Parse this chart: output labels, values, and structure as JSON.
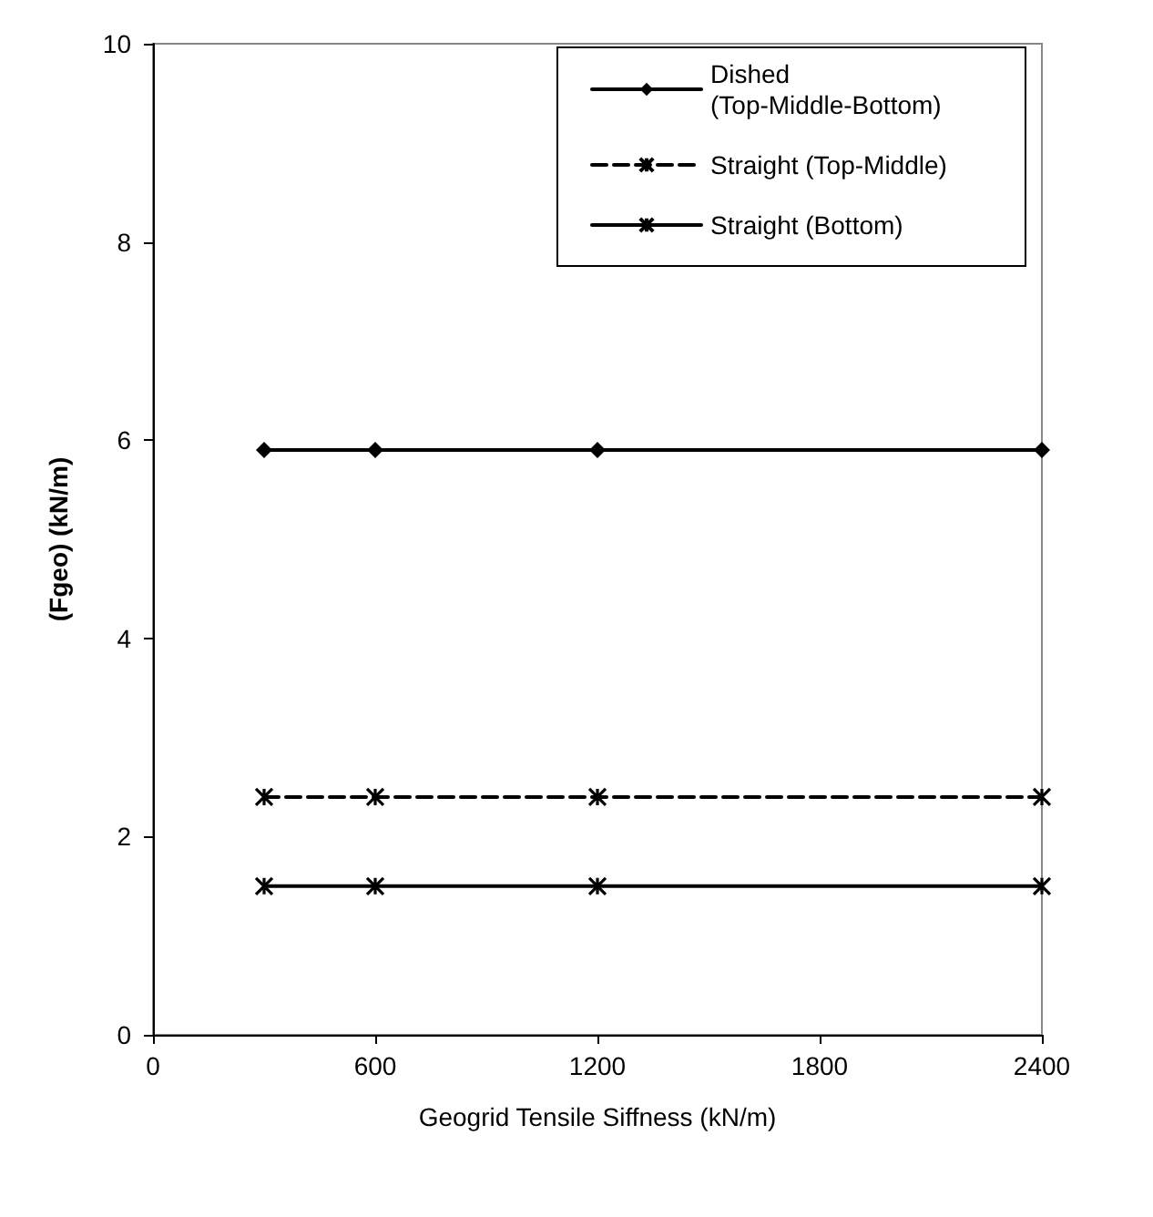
{
  "chart_data": {
    "type": "line",
    "xlabel": "Geogrid Tensile Siffness (kN/m)",
    "ylabel": "(Fgeo) (kN/m)",
    "x": [
      300,
      600,
      1200,
      2400
    ],
    "series": [
      {
        "name": "Dished (Top-Middle-Bottom)",
        "color": "#000000",
        "values": [
          5.9,
          5.9,
          5.9,
          5.9
        ],
        "marker": "diamond",
        "line_style": "solid"
      },
      {
        "name": "Straight (Top-Middle)",
        "color": "#000000",
        "values": [
          2.4,
          2.4,
          2.4,
          2.4
        ],
        "marker": "cross",
        "line_style": "dashed"
      },
      {
        "name": "Straight (Bottom)",
        "color": "#000000",
        "values": [
          1.5,
          1.5,
          1.5,
          1.5
        ],
        "marker": "cross",
        "line_style": "solid"
      }
    ],
    "xlim": [
      0,
      2400
    ],
    "xticks": [
      0,
      600,
      1200,
      1800,
      2400
    ],
    "ylim": [
      0,
      10
    ],
    "yticks": [
      0,
      2,
      4,
      6,
      8,
      10
    ],
    "grid": false,
    "legend": "top right"
  }
}
